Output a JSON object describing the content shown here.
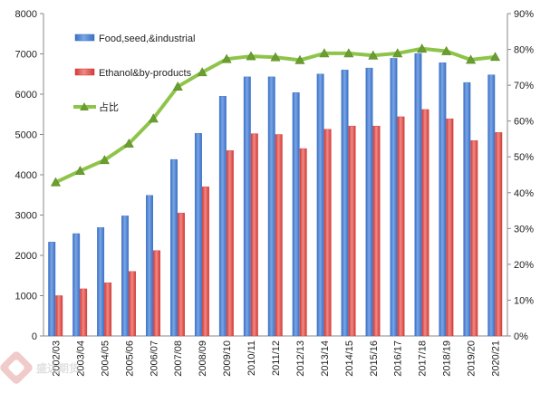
{
  "chart_data": {
    "type": "bar",
    "categories": [
      "2002/03",
      "2003/04",
      "2004/05",
      "2005/06",
      "2006/07",
      "2007/08",
      "2008/09",
      "2009/10",
      "2010/11",
      "2011/12",
      "2012/13",
      "2013/14",
      "2014/15",
      "2015/16",
      "2016/17",
      "2017/18",
      "2018/19",
      "2019/20",
      "2020/21"
    ],
    "series": [
      {
        "name": "Food,seed,&industrial",
        "axis": "left",
        "kind": "bar",
        "color": "#3a6fc4",
        "values": [
          2330,
          2540,
          2690,
          2980,
          3490,
          4380,
          5030,
          5950,
          6430,
          6430,
          6040,
          6500,
          6600,
          6650,
          6890,
          7010,
          6780,
          6290,
          6480
        ]
      },
      {
        "name": "Ethanol&by-products",
        "axis": "left",
        "kind": "bar",
        "color": "#d23a36",
        "values": [
          1000,
          1170,
          1320,
          1600,
          2120,
          3050,
          3700,
          4600,
          5020,
          5000,
          4650,
          5130,
          5210,
          5210,
          5440,
          5620,
          5390,
          4850,
          5050
        ]
      },
      {
        "name": "占比",
        "axis": "right",
        "kind": "line",
        "color": "#8fc44a",
        "marker": "triangle",
        "marker_color": "#6a9e30",
        "values": [
          42.9,
          46.1,
          49.1,
          53.7,
          60.7,
          69.6,
          73.6,
          77.3,
          78.1,
          77.8,
          77.0,
          78.9,
          78.9,
          78.3,
          78.9,
          80.2,
          79.5,
          77.1,
          77.9
        ]
      }
    ],
    "y_left": {
      "min": 0,
      "max": 8000,
      "step": 1000,
      "ticks": [
        "0",
        "1000",
        "2000",
        "3000",
        "4000",
        "5000",
        "6000",
        "7000",
        "8000"
      ]
    },
    "y_right": {
      "min": 0,
      "max": 90,
      "step": 10,
      "ticks": [
        "0%",
        "10%",
        "20%",
        "30%",
        "40%",
        "50%",
        "60%",
        "70%",
        "80%",
        "90%"
      ]
    },
    "title": "",
    "xlabel": "",
    "ylabel": "",
    "grid": false,
    "legend_position": "top-left-inside"
  },
  "watermark": {
    "icon": "watermark-logo-icon",
    "text": "盛达期货"
  }
}
